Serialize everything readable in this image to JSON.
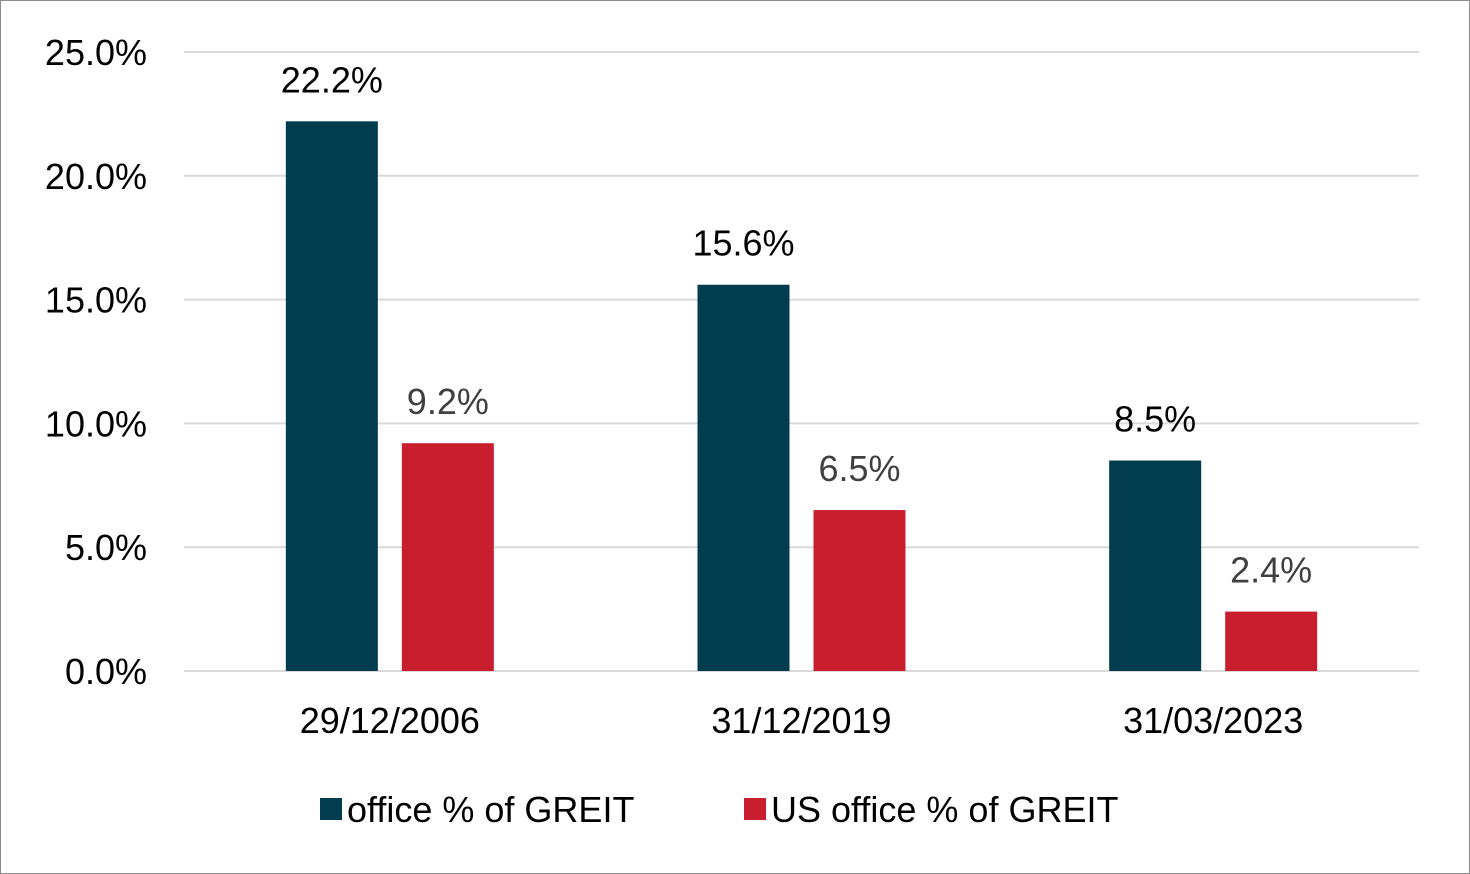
{
  "chart_data": {
    "type": "bar",
    "categories": [
      "29/12/2006",
      "31/12/2019",
      "31/03/2023"
    ],
    "series": [
      {
        "name": "office % of GREIT",
        "values": [
          22.2,
          15.6,
          8.5
        ],
        "color": "#013d4f",
        "label_color": "#000000"
      },
      {
        "name": "US office % of GREIT",
        "values": [
          9.2,
          6.5,
          2.4
        ],
        "color": "#c81e2e",
        "label_color": "#404040"
      }
    ],
    "data_labels": [
      [
        "22.2%",
        "15.6%",
        "8.5%"
      ],
      [
        "9.2%",
        "6.5%",
        "2.4%"
      ]
    ],
    "y_ticks": [
      "0.0%",
      "5.0%",
      "10.0%",
      "15.0%",
      "20.0%",
      "25.0%"
    ],
    "ylim": [
      0,
      25
    ],
    "ystep": 5,
    "grid": true,
    "legend_position": "bottom",
    "gridline_color": "#d9d9d9"
  }
}
